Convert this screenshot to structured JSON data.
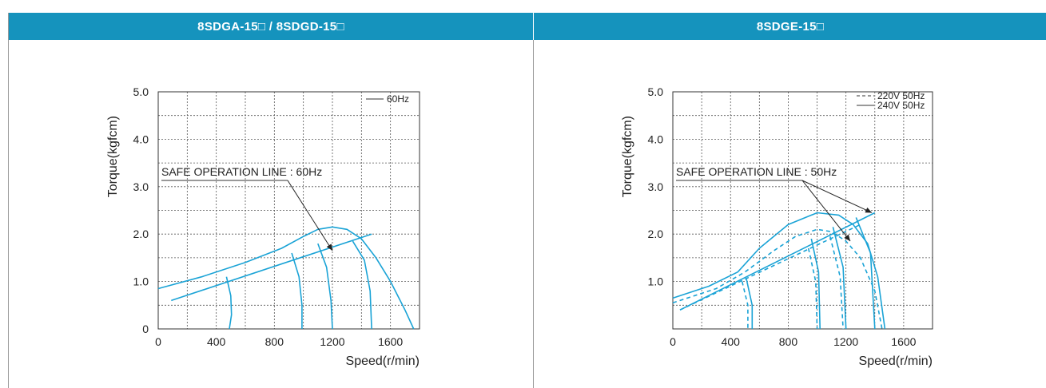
{
  "header": {
    "left_title": "8SDGA-15□ / 8SDGD-15□",
    "right_title": "8SDGE-15□"
  },
  "chart_data": [
    {
      "type": "line",
      "title": "8SDGA-15□ / 8SDGD-15□",
      "xlabel": "Speed(r/min)",
      "ylabel": "Torque(kgfcm)",
      "xlim": [
        0,
        1800
      ],
      "ylim": [
        0,
        5
      ],
      "xticks": [
        "0",
        "400",
        "800",
        "1200",
        "1600"
      ],
      "yticks": [
        "0",
        "1.0",
        "2.0",
        "3.0",
        "4.0",
        "5.0"
      ],
      "grid": true,
      "legend": [
        {
          "name": "60Hz",
          "style": "solid"
        }
      ],
      "annotation": "SAFE OPERATION LINE : 60Hz",
      "series": [
        {
          "name": "60Hz",
          "style": "solid",
          "points": [
            [
              0,
              0.85
            ],
            [
              300,
              1.1
            ],
            [
              600,
              1.4
            ],
            [
              850,
              1.7
            ],
            [
              1000,
              1.95
            ],
            [
              1100,
              2.1
            ],
            [
              1200,
              2.15
            ],
            [
              1300,
              2.1
            ],
            [
              1400,
              1.9
            ],
            [
              1500,
              1.5
            ],
            [
              1600,
              1.0
            ],
            [
              1700,
              0.4
            ],
            [
              1760,
              0
            ]
          ]
        },
        {
          "name": "safe-line",
          "style": "solid",
          "points": [
            [
              90,
              0.6
            ],
            [
              1470,
              2.0
            ]
          ]
        },
        {
          "name": "drop-1",
          "style": "solid",
          "points": [
            [
              470,
              1.1
            ],
            [
              500,
              0.7
            ],
            [
              505,
              0.3
            ],
            [
              490,
              0
            ]
          ]
        },
        {
          "name": "drop-2",
          "style": "solid",
          "points": [
            [
              920,
              1.6
            ],
            [
              970,
              1.1
            ],
            [
              990,
              0.5
            ],
            [
              990,
              0
            ]
          ]
        },
        {
          "name": "drop-3",
          "style": "solid",
          "points": [
            [
              1100,
              1.8
            ],
            [
              1160,
              1.3
            ],
            [
              1190,
              0.6
            ],
            [
              1200,
              0
            ]
          ]
        },
        {
          "name": "drop-4",
          "style": "solid",
          "points": [
            [
              1340,
              1.85
            ],
            [
              1420,
              1.45
            ],
            [
              1460,
              0.8
            ],
            [
              1470,
              0
            ]
          ]
        }
      ]
    },
    {
      "type": "line",
      "title": "8SDGE-15□",
      "xlabel": "Speed(r/min)",
      "ylabel": "Torque(kgfcm)",
      "xlim": [
        0,
        1800
      ],
      "ylim": [
        0,
        5
      ],
      "xticks": [
        "0",
        "400",
        "800",
        "1200",
        "1600"
      ],
      "yticks": [
        "1.0",
        "2.0",
        "3.0",
        "4.0",
        "5.0"
      ],
      "grid": true,
      "legend": [
        {
          "name": "220V 50Hz",
          "style": "dashed"
        },
        {
          "name": "240V 50Hz",
          "style": "solid"
        }
      ],
      "annotation": "SAFE OPERATION LINE : 50Hz",
      "series": [
        {
          "name": "240V 50Hz",
          "style": "solid",
          "points": [
            [
              0,
              0.65
            ],
            [
              250,
              0.9
            ],
            [
              450,
              1.2
            ],
            [
              600,
              1.7
            ],
            [
              800,
              2.2
            ],
            [
              1000,
              2.45
            ],
            [
              1150,
              2.4
            ],
            [
              1250,
              2.2
            ],
            [
              1350,
              1.8
            ],
            [
              1420,
              1.1
            ],
            [
              1470,
              0
            ]
          ]
        },
        {
          "name": "220V 50Hz",
          "style": "dashed",
          "points": [
            [
              0,
              0.55
            ],
            [
              300,
              0.85
            ],
            [
              500,
              1.2
            ],
            [
              700,
              1.65
            ],
            [
              850,
              1.95
            ],
            [
              1000,
              2.1
            ],
            [
              1100,
              2.05
            ],
            [
              1200,
              1.85
            ],
            [
              1300,
              1.5
            ],
            [
              1400,
              0.8
            ],
            [
              1450,
              0
            ]
          ]
        },
        {
          "name": "safe-line-240V",
          "style": "solid",
          "points": [
            [
              50,
              0.4
            ],
            [
              1400,
              2.45
            ]
          ]
        },
        {
          "name": "safe-line-220V",
          "style": "dashed",
          "points": [
            [
              50,
              0.4
            ],
            [
              1300,
              2.2
            ]
          ]
        },
        {
          "name": "drop-1-240V",
          "style": "solid",
          "points": [
            [
              510,
              1.05
            ],
            [
              550,
              0.5
            ],
            [
              550,
              0
            ]
          ]
        },
        {
          "name": "drop-1-220V",
          "style": "dashed",
          "points": [
            [
              480,
              1.0
            ],
            [
              520,
              0.5
            ],
            [
              520,
              0
            ]
          ]
        },
        {
          "name": "drop-2-240V",
          "style": "solid",
          "points": [
            [
              960,
              1.9
            ],
            [
              1010,
              1.2
            ],
            [
              1020,
              0
            ]
          ]
        },
        {
          "name": "drop-2-220V",
          "style": "dashed",
          "points": [
            [
              940,
              1.7
            ],
            [
              990,
              1.0
            ],
            [
              1000,
              0
            ]
          ]
        },
        {
          "name": "drop-3-240V",
          "style": "solid",
          "points": [
            [
              1110,
              2.15
            ],
            [
              1180,
              1.3
            ],
            [
              1200,
              0
            ]
          ]
        },
        {
          "name": "drop-3-220V",
          "style": "dashed",
          "points": [
            [
              1090,
              1.95
            ],
            [
              1160,
              1.1
            ],
            [
              1180,
              0
            ]
          ]
        },
        {
          "name": "drop-4-240V",
          "style": "solid",
          "points": [
            [
              1270,
              2.35
            ],
            [
              1370,
              1.6
            ],
            [
              1400,
              0
            ]
          ]
        }
      ]
    }
  ]
}
